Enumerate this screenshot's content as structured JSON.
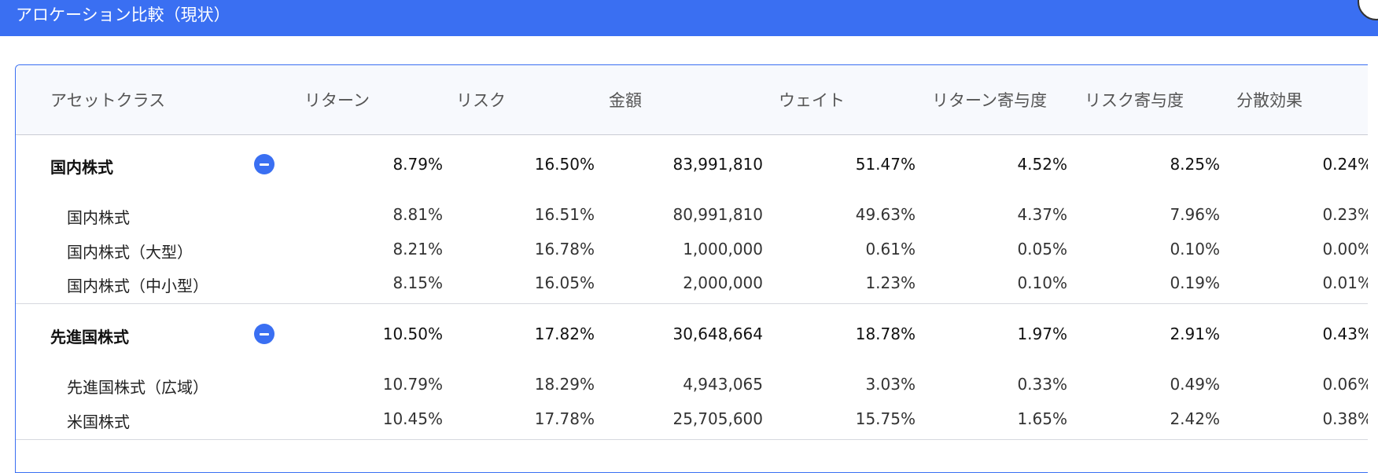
{
  "header": {
    "title": "アロケーション比較（現状）"
  },
  "table": {
    "columns": [
      "アセットクラス",
      "リターン",
      "リスク",
      "金額",
      "ウェイト",
      "リターン寄与度",
      "リスク寄与度",
      "分散効果"
    ],
    "groups": [
      {
        "name": "国内株式",
        "values": [
          "8.79%",
          "16.50%",
          "83,991,810",
          "51.47%",
          "4.52%",
          "8.25%",
          "0.24%"
        ],
        "children": [
          {
            "name": "国内株式",
            "values": [
              "8.81%",
              "16.51%",
              "80,991,810",
              "49.63%",
              "4.37%",
              "7.96%",
              "0.23%"
            ]
          },
          {
            "name": "国内株式（大型）",
            "values": [
              "8.21%",
              "16.78%",
              "1,000,000",
              "0.61%",
              "0.05%",
              "0.10%",
              "0.00%"
            ]
          },
          {
            "name": "国内株式（中小型）",
            "values": [
              "8.15%",
              "16.05%",
              "2,000,000",
              "1.23%",
              "0.10%",
              "0.19%",
              "0.01%"
            ]
          }
        ]
      },
      {
        "name": "先進国株式",
        "values": [
          "10.50%",
          "17.82%",
          "30,648,664",
          "18.78%",
          "1.97%",
          "2.91%",
          "0.43%"
        ],
        "children": [
          {
            "name": "先進国株式（広域）",
            "values": [
              "10.79%",
              "18.29%",
              "4,943,065",
              "3.03%",
              "0.33%",
              "0.49%",
              "0.06%"
            ]
          },
          {
            "name": "米国株式",
            "values": [
              "10.45%",
              "17.78%",
              "25,705,600",
              "15.75%",
              "1.65%",
              "2.42%",
              "0.38%"
            ]
          }
        ]
      }
    ]
  },
  "colors": {
    "accent": "#3a6ff2",
    "header_bg": "#f7f9fd"
  }
}
